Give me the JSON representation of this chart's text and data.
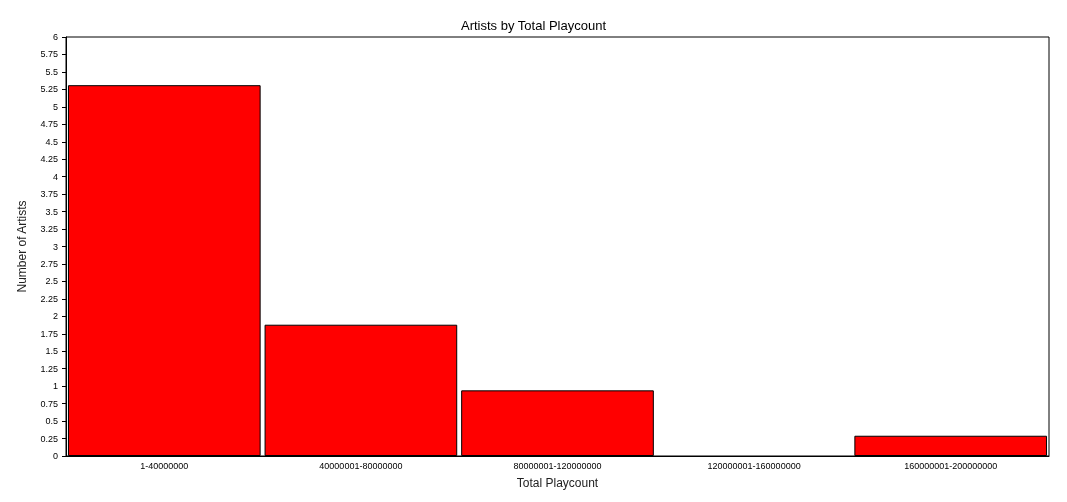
{
  "chart_data": {
    "type": "bar",
    "title": "Artists by Total Playcount",
    "xlabel": "Total Playcount",
    "ylabel": "Number of Artists",
    "categories": [
      "1-40000000",
      "40000001-80000000",
      "80000001-120000000",
      "120000001-160000000",
      "160000001-200000000"
    ],
    "values": [
      5.31,
      1.88,
      0.94,
      0,
      0.29
    ],
    "color": "#ff0000",
    "ylim": [
      0,
      6
    ],
    "yticks": [
      0,
      0.25,
      0.5,
      0.75,
      1,
      1.25,
      1.5,
      1.75,
      2,
      2.25,
      2.5,
      2.75,
      3,
      3.25,
      3.5,
      3.75,
      4,
      4.25,
      4.5,
      4.75,
      5,
      5.25,
      5.5,
      5.75,
      6
    ],
    "grid": false
  }
}
